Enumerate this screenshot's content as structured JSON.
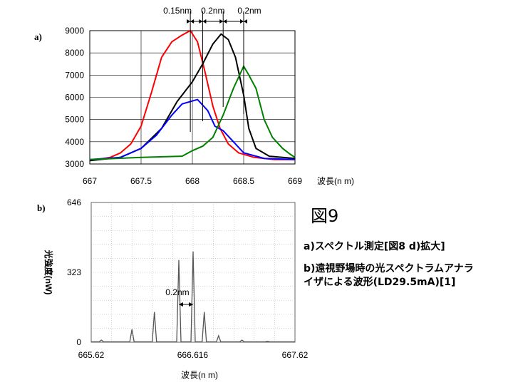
{
  "panel_a_label": "a)",
  "panel_b_label": "b)",
  "figure_title": "図9",
  "caption": {
    "line1": "a)スペクトル測定[図8 d)拡大]",
    "line2a": "b)遠視野場時の光スペクトラムアナラ",
    "line2b": "イザによる波形(LD29.5mA)[1]"
  },
  "chart_data": [
    {
      "type": "line",
      "panel": "a",
      "xlabel": "波長(n m)",
      "ylabel": "",
      "xlim": [
        667,
        669
      ],
      "ylim": [
        3000,
        9000
      ],
      "x_ticks": [
        "667",
        "667.5",
        "668",
        "668.5",
        "669"
      ],
      "y_ticks": [
        "3000",
        "4000",
        "5000",
        "6000",
        "7000",
        "8000",
        "9000"
      ],
      "grid": true,
      "annotations": [
        "0.15nm",
        "0.2nm",
        "0.2nm"
      ],
      "series": [
        {
          "color": "#ff0000",
          "points": [
            [
              667.0,
              3150
            ],
            [
              667.2,
              3300
            ],
            [
              667.3,
              3500
            ],
            [
              667.4,
              3900
            ],
            [
              667.5,
              4700
            ],
            [
              667.6,
              6200
            ],
            [
              667.7,
              7800
            ],
            [
              667.8,
              8500
            ],
            [
              667.9,
              8800
            ],
            [
              667.98,
              9000
            ],
            [
              668.05,
              8500
            ],
            [
              668.12,
              7200
            ],
            [
              668.2,
              5600
            ],
            [
              668.27,
              4600
            ],
            [
              668.35,
              3900
            ],
            [
              668.45,
              3500
            ],
            [
              668.6,
              3300
            ],
            [
              668.8,
              3200
            ],
            [
              669.0,
              3200
            ]
          ]
        },
        {
          "color": "#000000",
          "points": [
            [
              667.0,
              3150
            ],
            [
              667.3,
              3300
            ],
            [
              667.5,
              3700
            ],
            [
              667.7,
              4600
            ],
            [
              667.85,
              5800
            ],
            [
              668.0,
              6700
            ],
            [
              668.1,
              7500
            ],
            [
              668.2,
              8400
            ],
            [
              668.28,
              8850
            ],
            [
              668.35,
              8600
            ],
            [
              668.42,
              7800
            ],
            [
              668.5,
              6100
            ],
            [
              668.55,
              4600
            ],
            [
              668.62,
              3700
            ],
            [
              668.75,
              3350
            ],
            [
              669.0,
              3250
            ]
          ]
        },
        {
          "color": "#0000ff",
          "points": [
            [
              667.0,
              3200
            ],
            [
              667.3,
              3300
            ],
            [
              667.5,
              3700
            ],
            [
              667.65,
              4300
            ],
            [
              667.8,
              5200
            ],
            [
              667.9,
              5700
            ],
            [
              668.05,
              5900
            ],
            [
              668.15,
              5400
            ],
            [
              668.22,
              4700
            ],
            [
              668.3,
              4500
            ],
            [
              668.4,
              4000
            ],
            [
              668.5,
              3500
            ],
            [
              668.7,
              3250
            ],
            [
              669.0,
              3200
            ]
          ]
        },
        {
          "color": "#008000",
          "points": [
            [
              667.0,
              3200
            ],
            [
              667.5,
              3300
            ],
            [
              667.9,
              3350
            ],
            [
              668.0,
              3600
            ],
            [
              668.1,
              3800
            ],
            [
              668.2,
              4200
            ],
            [
              668.3,
              5200
            ],
            [
              668.4,
              6400
            ],
            [
              668.45,
              6900
            ],
            [
              668.5,
              7400
            ],
            [
              668.55,
              7000
            ],
            [
              668.62,
              6400
            ],
            [
              668.7,
              5000
            ],
            [
              668.78,
              4200
            ],
            [
              668.88,
              3700
            ],
            [
              668.95,
              3450
            ],
            [
              669.0,
              3300
            ]
          ]
        }
      ]
    },
    {
      "type": "line",
      "panel": "b",
      "xlabel": "波長(n m)",
      "ylabel": "光強度(nW)",
      "xlim": [
        665.62,
        667.62
      ],
      "ylim": [
        0,
        646
      ],
      "x_ticks": [
        "665.62",
        "666.616",
        "667.62"
      ],
      "y_ticks": [
        "0",
        "323",
        "646"
      ],
      "grid": true,
      "annotations": [
        "0.2nm"
      ],
      "series": [
        {
          "color": "#555555",
          "peaks": [
            [
              665.72,
              10
            ],
            [
              666.02,
              60
            ],
            [
              666.24,
              140
            ],
            [
              666.48,
              380
            ],
            [
              666.62,
              420
            ],
            [
              666.73,
              140
            ],
            [
              666.87,
              30
            ],
            [
              667.1,
              10
            ],
            [
              667.35,
              5
            ]
          ]
        }
      ]
    }
  ]
}
